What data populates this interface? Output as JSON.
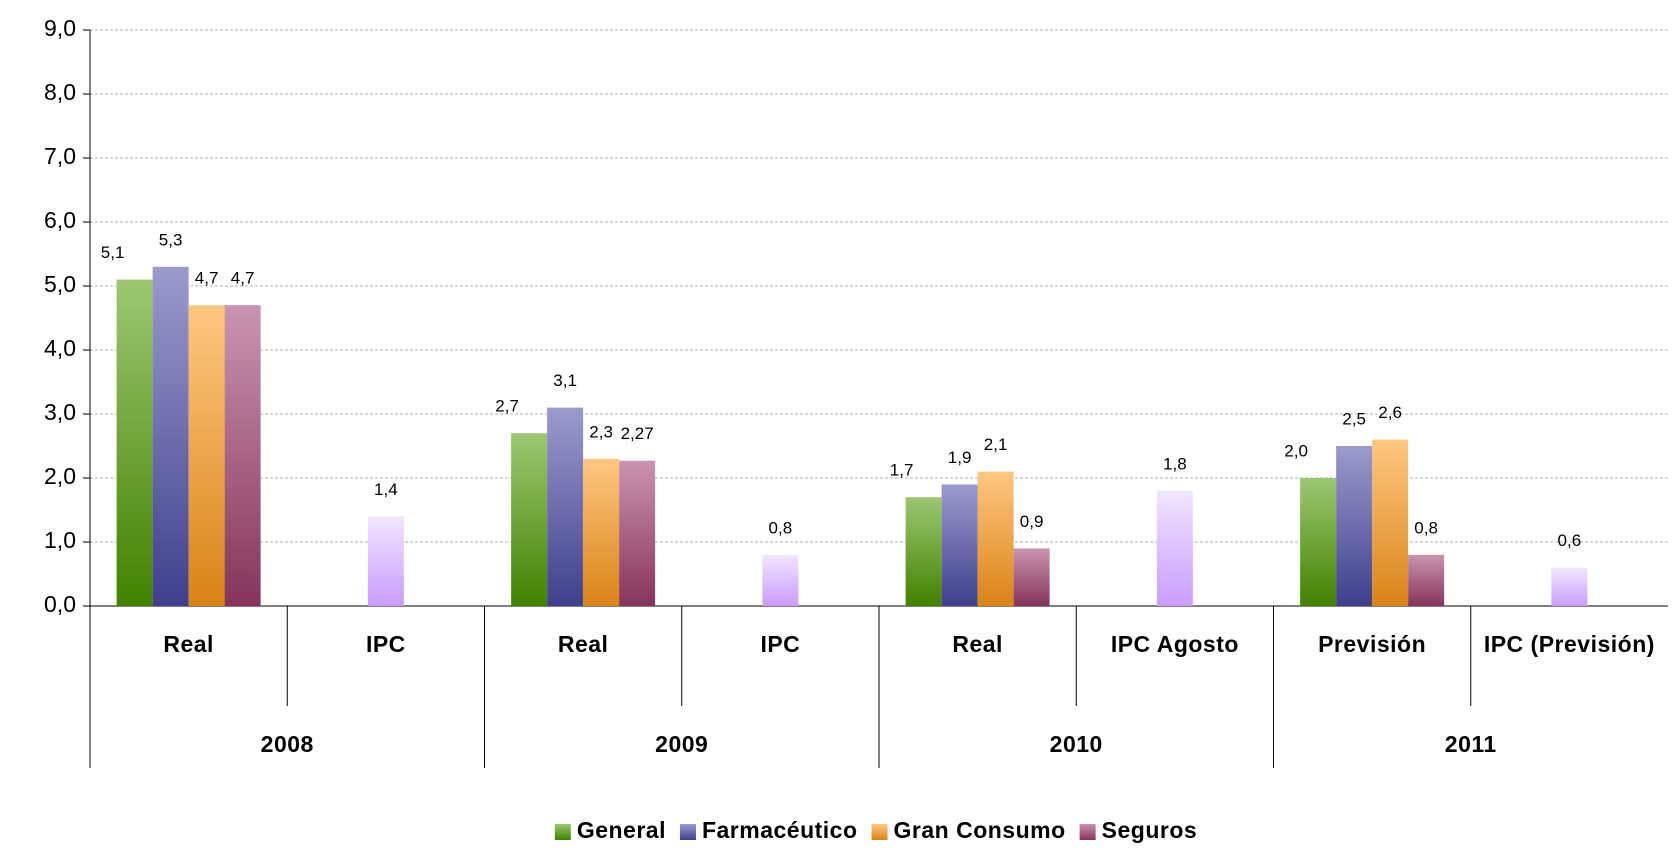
{
  "chart_data": {
    "type": "bar",
    "categories": [
      "Real",
      "IPC",
      "Real",
      "IPC",
      "Real",
      "IPC Agosto",
      "Previsión",
      "IPC (Previsión)"
    ],
    "groups": [
      "2008",
      "2009",
      "2010",
      "2011"
    ],
    "series": [
      {
        "name": "General",
        "color": "#4d9900",
        "values": [
          5.1,
          null,
          2.7,
          null,
          1.7,
          null,
          2.0,
          null
        ],
        "value_labels": [
          "5,1",
          null,
          "2,7",
          null,
          "1,7",
          null,
          "2,0",
          null
        ]
      },
      {
        "name": "Farmacéutico",
        "color": "#4a4aa6",
        "values": [
          5.3,
          null,
          3.1,
          null,
          1.9,
          null,
          2.5,
          null
        ],
        "value_labels": [
          "5,3",
          null,
          "3,1",
          null,
          "1,9",
          null,
          "2,5",
          null
        ]
      },
      {
        "name": "Gran Consumo",
        "color": "#ff9a1a",
        "values": [
          4.7,
          null,
          2.3,
          null,
          2.1,
          null,
          2.6,
          null
        ],
        "value_labels": [
          "4,7",
          null,
          "2,3",
          null,
          "2,1",
          null,
          "2,6",
          null
        ]
      },
      {
        "name": "Seguros",
        "color": "#9e3d6b",
        "values": [
          4.7,
          null,
          2.27,
          null,
          0.9,
          null,
          0.8,
          null
        ],
        "value_labels": [
          "4,7",
          null,
          "2,27",
          null,
          "0,9",
          null,
          "0,8",
          null
        ]
      },
      {
        "color": "#c99cff",
        "values": [
          null,
          1.4,
          null,
          0.8,
          null,
          1.8,
          null,
          0.6
        ],
        "value_labels": [
          null,
          "1,4",
          null,
          "0,8",
          null,
          "1,8",
          null,
          "0,6"
        ]
      }
    ],
    "ylim": [
      0,
      9
    ],
    "yticks": [
      {
        "value": 0,
        "label": "0,0"
      },
      {
        "value": 1,
        "label": "1,0"
      },
      {
        "value": 2,
        "label": "2,0"
      },
      {
        "value": 3,
        "label": "3,0"
      },
      {
        "value": 4,
        "label": "4,0"
      },
      {
        "value": 5,
        "label": "5,0"
      },
      {
        "value": 6,
        "label": "6,0"
      },
      {
        "value": 7,
        "label": "7,0"
      },
      {
        "value": 8,
        "label": "8,0"
      },
      {
        "value": 9,
        "label": "9,0"
      }
    ],
    "grid": true,
    "legend": "bottom"
  }
}
